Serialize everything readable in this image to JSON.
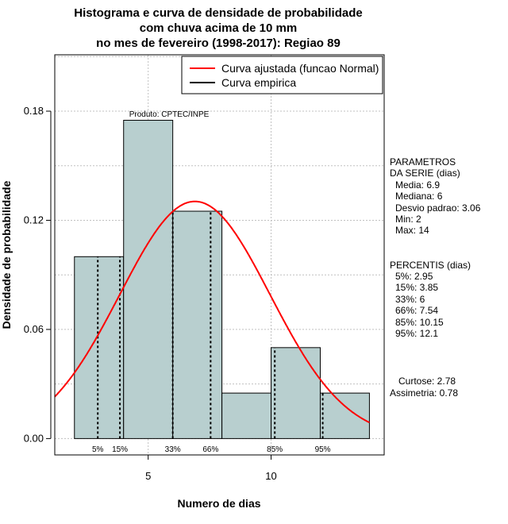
{
  "chart_data": {
    "type": "bar",
    "title_lines": [
      "Histograma e curva de densidade de probabilidade",
      "com chuva acima de 10 mm",
      "no mes de fevereiro (1998-2017): Regiao 89"
    ],
    "xlabel": "Numero de dias",
    "ylabel": "Densidade de probabilidade",
    "xlim": [
      1.2,
      14.6
    ],
    "ylim": [
      -0.009,
      0.211
    ],
    "x_ticks": [
      5,
      10
    ],
    "y_ticks": [
      0.0,
      0.06,
      0.12,
      0.18
    ],
    "y_tick_labels": [
      "0.00",
      "0.06",
      "0.12",
      "0.18"
    ],
    "grid": true,
    "bar_color": "#b8cfcf",
    "bars": [
      {
        "x0": 2,
        "x1": 4,
        "density": 0.1
      },
      {
        "x0": 4,
        "x1": 6,
        "density": 0.175
      },
      {
        "x0": 6,
        "x1": 8,
        "density": 0.125
      },
      {
        "x0": 8,
        "x1": 10,
        "density": 0.025
      },
      {
        "x0": 10,
        "x1": 12,
        "density": 0.05
      },
      {
        "x0": 12,
        "x1": 14,
        "density": 0.025
      }
    ],
    "fitted_curve": {
      "name": "Curva ajustada (funcao Normal)",
      "color": "#ff0000",
      "mean": 6.9,
      "sd": 3.06,
      "x_from": 1.2,
      "x_to": 14
    },
    "empirical_curve": {
      "name": "Curva empirica",
      "color": "#000000"
    },
    "legend_position": "top-right",
    "percentile_lines": [
      {
        "label": "5%",
        "x": 2.95
      },
      {
        "label": "15%",
        "x": 3.85
      },
      {
        "label": "33%",
        "x": 6
      },
      {
        "label": "66%",
        "x": 7.54
      },
      {
        "label": "85%",
        "x": 10.15
      },
      {
        "label": "95%",
        "x": 12.1
      }
    ],
    "annotation": "Produto: CPTEC/INPE"
  },
  "stats": {
    "parametros_title": [
      "PARAMETROS",
      "DA SERIE (dias)"
    ],
    "parametros": [
      "Media: 6.9",
      "Mediana: 6",
      "Desvio padrao: 3.06",
      "Min: 2",
      "Max: 14"
    ],
    "percentis_title": "PERCENTIS (dias)",
    "percentis": [
      "5%: 2.95",
      "15%: 3.85",
      "33%: 6",
      "66%: 7.54",
      "85%: 10.15",
      "95%: 12.1"
    ],
    "curtose": "Curtose: 2.78",
    "assimetria": "Assimetria: 0.78"
  }
}
